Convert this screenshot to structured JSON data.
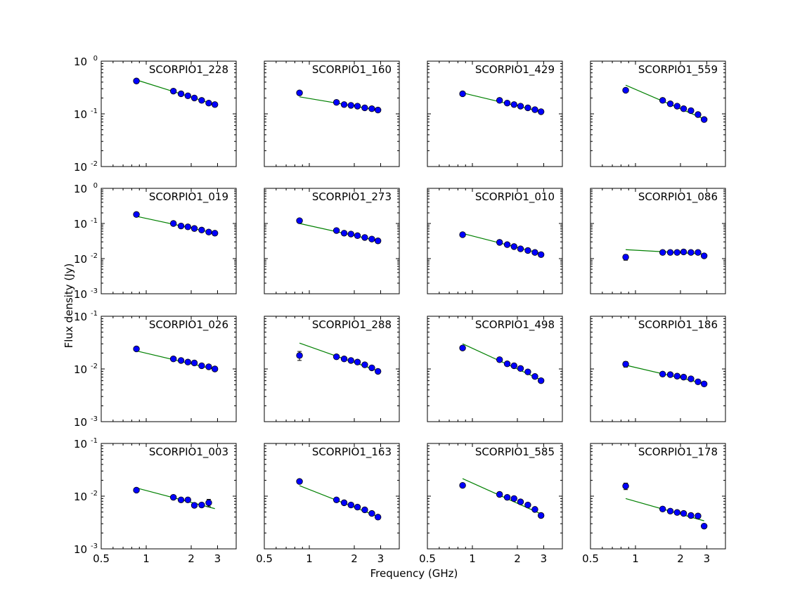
{
  "figure": {
    "xlabel": "Frequency (GHz)",
    "ylabel": "Flux density (Jy)",
    "marker_color": "#0000ff",
    "marker_edge": "#000000",
    "fit_color": "#008000",
    "frame_color": "#000000"
  },
  "chart_data": [
    {
      "type": "scatter",
      "title": "SCORPIO1_228",
      "xscale": "log",
      "yscale": "log",
      "xlim": [
        0.5,
        4
      ],
      "ylim": [
        0.01,
        1
      ],
      "x": [
        0.86,
        1.52,
        1.71,
        1.9,
        2.1,
        2.35,
        2.62,
        2.88
      ],
      "y": [
        0.42,
        0.27,
        0.24,
        0.22,
        0.2,
        0.18,
        0.16,
        0.15
      ],
      "yerr": [
        0.02,
        0.01,
        0.01,
        0.01,
        0.01,
        0.01,
        0.01,
        0.01
      ],
      "fit": {
        "x": [
          0.86,
          2.88
        ],
        "y": [
          0.44,
          0.15
        ]
      }
    },
    {
      "type": "scatter",
      "title": "SCORPIO1_160",
      "xscale": "log",
      "yscale": "log",
      "xlim": [
        0.5,
        4
      ],
      "ylim": [
        0.01,
        1
      ],
      "x": [
        0.86,
        1.52,
        1.71,
        1.9,
        2.1,
        2.35,
        2.62,
        2.88
      ],
      "y": [
        0.25,
        0.165,
        0.15,
        0.145,
        0.14,
        0.13,
        0.125,
        0.118
      ],
      "yerr": [
        0.015,
        0.008,
        0.006,
        0.006,
        0.006,
        0.006,
        0.006,
        0.006
      ],
      "fit": {
        "x": [
          0.86,
          2.88
        ],
        "y": [
          0.21,
          0.118
        ]
      }
    },
    {
      "type": "scatter",
      "title": "SCORPIO1_429",
      "xscale": "log",
      "yscale": "log",
      "xlim": [
        0.5,
        4
      ],
      "ylim": [
        0.01,
        1
      ],
      "x": [
        0.86,
        1.52,
        1.71,
        1.9,
        2.1,
        2.35,
        2.62,
        2.88
      ],
      "y": [
        0.24,
        0.18,
        0.16,
        0.15,
        0.14,
        0.13,
        0.12,
        0.11
      ],
      "yerr": [
        0.015,
        0.008,
        0.006,
        0.006,
        0.006,
        0.006,
        0.006,
        0.006
      ],
      "fit": {
        "x": [
          0.86,
          2.88
        ],
        "y": [
          0.25,
          0.11
        ]
      }
    },
    {
      "type": "scatter",
      "title": "SCORPIO1_559",
      "xscale": "log",
      "yscale": "log",
      "xlim": [
        0.5,
        4
      ],
      "ylim": [
        0.01,
        1
      ],
      "x": [
        0.86,
        1.52,
        1.71,
        1.9,
        2.1,
        2.35,
        2.62,
        2.88
      ],
      "y": [
        0.28,
        0.18,
        0.155,
        0.14,
        0.125,
        0.115,
        0.097,
        0.078
      ],
      "yerr": [
        0.02,
        0.008,
        0.006,
        0.006,
        0.006,
        0.006,
        0.006,
        0.005
      ],
      "fit": {
        "x": [
          0.86,
          2.88
        ],
        "y": [
          0.35,
          0.08
        ]
      }
    },
    {
      "type": "scatter",
      "title": "SCORPIO1_019",
      "xscale": "log",
      "yscale": "log",
      "xlim": [
        0.5,
        4
      ],
      "ylim": [
        0.001,
        1
      ],
      "x": [
        0.86,
        1.52,
        1.71,
        1.9,
        2.1,
        2.35,
        2.62,
        2.88
      ],
      "y": [
        0.18,
        0.1,
        0.085,
        0.08,
        0.072,
        0.065,
        0.057,
        0.053
      ],
      "yerr": [
        0.01,
        0.005,
        0.004,
        0.004,
        0.004,
        0.004,
        0.004,
        0.004
      ],
      "fit": {
        "x": [
          0.86,
          2.88
        ],
        "y": [
          0.16,
          0.053
        ]
      }
    },
    {
      "type": "scatter",
      "title": "SCORPIO1_273",
      "xscale": "log",
      "yscale": "log",
      "xlim": [
        0.5,
        4
      ],
      "ylim": [
        0.001,
        1
      ],
      "x": [
        0.86,
        1.52,
        1.71,
        1.9,
        2.1,
        2.35,
        2.62,
        2.88
      ],
      "y": [
        0.12,
        0.063,
        0.053,
        0.05,
        0.045,
        0.04,
        0.036,
        0.032
      ],
      "yerr": [
        0.008,
        0.004,
        0.003,
        0.003,
        0.003,
        0.003,
        0.003,
        0.003
      ],
      "fit": {
        "x": [
          0.86,
          2.88
        ],
        "y": [
          0.1,
          0.032
        ]
      }
    },
    {
      "type": "scatter",
      "title": "SCORPIO1_010",
      "xscale": "log",
      "yscale": "log",
      "xlim": [
        0.5,
        4
      ],
      "ylim": [
        0.001,
        1
      ],
      "x": [
        0.86,
        1.52,
        1.71,
        1.9,
        2.1,
        2.35,
        2.62,
        2.88
      ],
      "y": [
        0.048,
        0.029,
        0.025,
        0.022,
        0.019,
        0.017,
        0.015,
        0.013
      ],
      "yerr": [
        0.003,
        0.0015,
        0.0012,
        0.001,
        0.001,
        0.001,
        0.001,
        0.001
      ],
      "fit": {
        "x": [
          0.86,
          2.88
        ],
        "y": [
          0.052,
          0.014
        ]
      }
    },
    {
      "type": "scatter",
      "title": "SCORPIO1_086",
      "xscale": "log",
      "yscale": "log",
      "xlim": [
        0.5,
        4
      ],
      "ylim": [
        0.001,
        1
      ],
      "x": [
        0.86,
        1.52,
        1.71,
        1.9,
        2.1,
        2.35,
        2.62,
        2.88
      ],
      "y": [
        0.011,
        0.015,
        0.015,
        0.015,
        0.0155,
        0.015,
        0.015,
        0.012
      ],
      "yerr": [
        0.002,
        0.001,
        0.001,
        0.001,
        0.001,
        0.001,
        0.001,
        0.001
      ],
      "fit": {
        "x": [
          0.86,
          2.88
        ],
        "y": [
          0.018,
          0.0135
        ]
      }
    },
    {
      "type": "scatter",
      "title": "SCORPIO1_026",
      "xscale": "log",
      "yscale": "log",
      "xlim": [
        0.5,
        4
      ],
      "ylim": [
        0.001,
        0.1
      ],
      "x": [
        0.86,
        1.52,
        1.71,
        1.9,
        2.1,
        2.35,
        2.62,
        2.88
      ],
      "y": [
        0.024,
        0.0155,
        0.0145,
        0.0135,
        0.013,
        0.0115,
        0.011,
        0.01
      ],
      "yerr": [
        0.0015,
        0.0008,
        0.0007,
        0.0007,
        0.0007,
        0.0007,
        0.0007,
        0.0007
      ],
      "fit": {
        "x": [
          0.86,
          2.88
        ],
        "y": [
          0.022,
          0.0098
        ]
      }
    },
    {
      "type": "scatter",
      "title": "SCORPIO1_288",
      "xscale": "log",
      "yscale": "log",
      "xlim": [
        0.5,
        4
      ],
      "ylim": [
        0.001,
        0.1
      ],
      "x": [
        0.86,
        1.52,
        1.71,
        1.9,
        2.1,
        2.35,
        2.62,
        2.88
      ],
      "y": [
        0.018,
        0.017,
        0.0155,
        0.0145,
        0.0135,
        0.012,
        0.0105,
        0.009
      ],
      "yerr": [
        0.0035,
        0.001,
        0.0008,
        0.0007,
        0.0007,
        0.0007,
        0.0007,
        0.0006
      ],
      "fit": {
        "x": [
          0.86,
          2.88
        ],
        "y": [
          0.031,
          0.0092
        ]
      }
    },
    {
      "type": "scatter",
      "title": "SCORPIO1_498",
      "xscale": "log",
      "yscale": "log",
      "xlim": [
        0.5,
        4
      ],
      "ylim": [
        0.001,
        0.1
      ],
      "x": [
        0.86,
        1.52,
        1.71,
        1.9,
        2.1,
        2.35,
        2.62,
        2.88
      ],
      "y": [
        0.025,
        0.015,
        0.0125,
        0.0115,
        0.0102,
        0.0088,
        0.0072,
        0.006
      ],
      "yerr": [
        0.002,
        0.0008,
        0.0007,
        0.0006,
        0.0006,
        0.0005,
        0.0005,
        0.0004
      ],
      "fit": {
        "x": [
          0.86,
          2.88
        ],
        "y": [
          0.03,
          0.0062
        ]
      }
    },
    {
      "type": "scatter",
      "title": "SCORPIO1_186",
      "xscale": "log",
      "yscale": "log",
      "xlim": [
        0.5,
        4
      ],
      "ylim": [
        0.001,
        0.1
      ],
      "x": [
        0.86,
        1.52,
        1.71,
        1.9,
        2.1,
        2.35,
        2.62,
        2.88
      ],
      "y": [
        0.0123,
        0.008,
        0.0078,
        0.0073,
        0.007,
        0.0065,
        0.0057,
        0.0052
      ],
      "yerr": [
        0.0015,
        0.0005,
        0.0004,
        0.0004,
        0.0004,
        0.0004,
        0.0004,
        0.0004
      ],
      "fit": {
        "x": [
          0.86,
          2.88
        ],
        "y": [
          0.0118,
          0.0053
        ]
      }
    },
    {
      "type": "scatter",
      "title": "SCORPIO1_003",
      "xscale": "log",
      "yscale": "log",
      "xlim": [
        0.5,
        4
      ],
      "ylim": [
        0.001,
        0.1
      ],
      "x": [
        0.86,
        1.52,
        1.71,
        1.9,
        2.1,
        2.35,
        2.62
      ],
      "y": [
        0.013,
        0.0095,
        0.0085,
        0.0085,
        0.0067,
        0.0068,
        0.0075
      ],
      "yerr": [
        0.001,
        0.0006,
        0.0006,
        0.0006,
        0.0005,
        0.0005,
        0.0012
      ],
      "fit": {
        "x": [
          0.86,
          2.88
        ],
        "y": [
          0.0143,
          0.0058
        ]
      }
    },
    {
      "type": "scatter",
      "title": "SCORPIO1_163",
      "xscale": "log",
      "yscale": "log",
      "xlim": [
        0.5,
        4
      ],
      "ylim": [
        0.001,
        0.1
      ],
      "x": [
        0.86,
        1.52,
        1.71,
        1.9,
        2.1,
        2.35,
        2.62,
        2.88
      ],
      "y": [
        0.019,
        0.0085,
        0.0075,
        0.0068,
        0.0062,
        0.0055,
        0.0047,
        0.004
      ],
      "yerr": [
        0.0015,
        0.0005,
        0.0005,
        0.0004,
        0.0004,
        0.0004,
        0.0003,
        0.0003
      ],
      "fit": {
        "x": [
          0.86,
          2.88
        ],
        "y": [
          0.0158,
          0.0041
        ]
      }
    },
    {
      "type": "scatter",
      "title": "SCORPIO1_585",
      "xscale": "log",
      "yscale": "log",
      "xlim": [
        0.5,
        4
      ],
      "ylim": [
        0.001,
        0.1
      ],
      "x": [
        0.86,
        1.52,
        1.71,
        1.9,
        2.1,
        2.35,
        2.62,
        2.88
      ],
      "y": [
        0.016,
        0.0108,
        0.0095,
        0.009,
        0.0078,
        0.0068,
        0.0056,
        0.0043
      ],
      "yerr": [
        0.0012,
        0.0006,
        0.0005,
        0.0005,
        0.0004,
        0.0004,
        0.0004,
        0.0003
      ],
      "fit": {
        "x": [
          0.86,
          2.88
        ],
        "y": [
          0.0215,
          0.0046
        ]
      }
    },
    {
      "type": "scatter",
      "title": "SCORPIO1_178",
      "xscale": "log",
      "yscale": "log",
      "xlim": [
        0.5,
        4
      ],
      "ylim": [
        0.001,
        0.1
      ],
      "x": [
        0.86,
        1.52,
        1.71,
        1.9,
        2.1,
        2.35,
        2.62,
        2.88
      ],
      "y": [
        0.0155,
        0.0057,
        0.0052,
        0.0049,
        0.0047,
        0.0043,
        0.0042,
        0.0027
      ],
      "yerr": [
        0.0022,
        0.0004,
        0.0003,
        0.0003,
        0.0003,
        0.0003,
        0.0003,
        0.0002
      ],
      "fit": {
        "x": [
          0.86,
          2.88
        ],
        "y": [
          0.009,
          0.0034
        ]
      }
    }
  ]
}
